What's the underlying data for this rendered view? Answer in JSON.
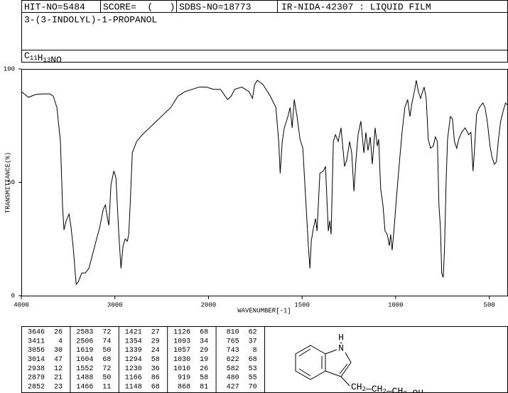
{
  "header": {
    "hit_no": "HIT-NO=5484",
    "score": "SCORE=  (   )",
    "sdbs_no": "SDBS-NO=18773",
    "method": "IR-NIDA-42307 : LIQUID FILM"
  },
  "compound_name": "3-(3-INDOLYL)-1-PROPANOL",
  "formula": [
    {
      "text": "C",
      "sub": "11"
    },
    {
      "text": "H",
      "sub": "13"
    },
    {
      "text": "NO"
    }
  ],
  "chart_data": {
    "type": "line",
    "xlabel": "WAVENUMBER[-1]",
    "ylabel": "TRANSMITTANCE(%)",
    "xlim": [
      4000,
      400
    ],
    "xticks": [
      4000,
      3000,
      2000,
      1500,
      1000,
      500
    ],
    "ylim": [
      0,
      100
    ],
    "yticks": [
      0,
      50,
      100
    ],
    "color": "#000000",
    "x": [
      4000,
      3924,
      3848,
      3772,
      3696,
      3658,
      3620,
      3582,
      3559,
      3544,
      3521,
      3490,
      3468,
      3445,
      3414,
      3392,
      3354,
      3316,
      3278,
      3240,
      3202,
      3163,
      3125,
      3102,
      3087,
      3065,
      3042,
      3011,
      2989,
      2958,
      2935,
      2913,
      2890,
      2867,
      2852,
      2837,
      2814,
      2768,
      2707,
      2631,
      2555,
      2479,
      2403,
      2327,
      2251,
      2175,
      2099,
      2023,
      1973,
      1936,
      1898,
      1879,
      1860,
      1822,
      1784,
      1765,
      1754,
      1739,
      1708,
      1670,
      1640,
      1625,
      1617,
      1606,
      1595,
      1576,
      1564,
      1553,
      1542,
      1527,
      1511,
      1496,
      1481,
      1466,
      1458,
      1451,
      1439,
      1428,
      1420,
      1405,
      1386,
      1375,
      1360,
      1352,
      1345,
      1333,
      1322,
      1307,
      1292,
      1273,
      1261,
      1246,
      1235,
      1223,
      1212,
      1201,
      1186,
      1170,
      1159,
      1148,
      1136,
      1125,
      1110,
      1098,
      1091,
      1080,
      1068,
      1057,
      1045,
      1034,
      1027,
      1019,
      1008,
      996,
      981,
      966,
      951,
      936,
      924,
      913,
      898,
      890,
      879,
      867,
      856,
      848,
      837,
      826,
      814,
      799,
      788,
      777,
      769,
      761,
      754,
      746,
      739,
      731,
      723,
      708,
      697,
      686,
      674,
      663,
      648,
      629,
      610,
      598,
      587,
      580,
      568,
      553,
      534,
      523,
      511,
      496,
      485,
      473,
      462,
      451,
      439,
      424,
      413,
      402
    ],
    "values": [
      90,
      87.5,
      88.7,
      89,
      89,
      88,
      83,
      68,
      39,
      29,
      33,
      36,
      30,
      21,
      5,
      6,
      10,
      10,
      12,
      18,
      24,
      30,
      38,
      40,
      36,
      31,
      49,
      55,
      52,
      27,
      12,
      22,
      25,
      24,
      27,
      40,
      63,
      68,
      71,
      74,
      77,
      80,
      83,
      88,
      90,
      91,
      92,
      92,
      91,
      91,
      86.5,
      88,
      91,
      92,
      90,
      87,
      93,
      95,
      93,
      88,
      83,
      68,
      54,
      68,
      74,
      79,
      83,
      74,
      86.5,
      79,
      69,
      65,
      43,
      21,
      12,
      24,
      30,
      34,
      28.5,
      54,
      55,
      57,
      28.5,
      33,
      27,
      68,
      71,
      68,
      74,
      57,
      60,
      68,
      63,
      46,
      60,
      71,
      77,
      63,
      72,
      64,
      70,
      58,
      74,
      66,
      69,
      47,
      40,
      28.5,
      27,
      22,
      27,
      20,
      30,
      43,
      58,
      72,
      83,
      86.5,
      79,
      85,
      91,
      95,
      90,
      87,
      90,
      92,
      87,
      69,
      65,
      66,
      70,
      68,
      40,
      30,
      10,
      8,
      21,
      49,
      69,
      79,
      78,
      68,
      65,
      69,
      72,
      74,
      71,
      72,
      55,
      63,
      80,
      83,
      85,
      83,
      77,
      66,
      61,
      58,
      59,
      69,
      77,
      82,
      85,
      84
    ]
  },
  "peaks": [
    [
      3646,
      26
    ],
    [
      3411,
      4
    ],
    [
      3056,
      30
    ],
    [
      3014,
      47
    ],
    [
      2938,
      12
    ],
    [
      2879,
      21
    ],
    [
      2852,
      23
    ],
    [
      2583,
      72
    ],
    [
      2506,
      74
    ],
    [
      1619,
      50
    ],
    [
      1604,
      68
    ],
    [
      1552,
      72
    ],
    [
      1488,
      50
    ],
    [
      1466,
      11
    ],
    [
      1421,
      27
    ],
    [
      1354,
      29
    ],
    [
      1339,
      24
    ],
    [
      1294,
      58
    ],
    [
      1230,
      36
    ],
    [
      1166,
      86
    ],
    [
      1148,
      68
    ],
    [
      1126,
      68
    ],
    [
      1093,
      34
    ],
    [
      1057,
      29
    ],
    [
      1030,
      19
    ],
    [
      1010,
      26
    ],
    [
      919,
      58
    ],
    [
      868,
      81
    ],
    [
      810,
      62
    ],
    [
      765,
      37
    ],
    [
      743,
      8
    ],
    [
      622,
      68
    ],
    [
      582,
      53
    ],
    [
      480,
      55
    ],
    [
      427,
      70
    ]
  ],
  "structure": {
    "n_label": "N",
    "h_label": "H",
    "chain": [
      {
        "text": "CH",
        "sub": "2"
      },
      {
        "text": "CH",
        "sub": "2"
      },
      {
        "text": "CH",
        "sub": "2"
      },
      {
        "text": "OH"
      }
    ]
  }
}
